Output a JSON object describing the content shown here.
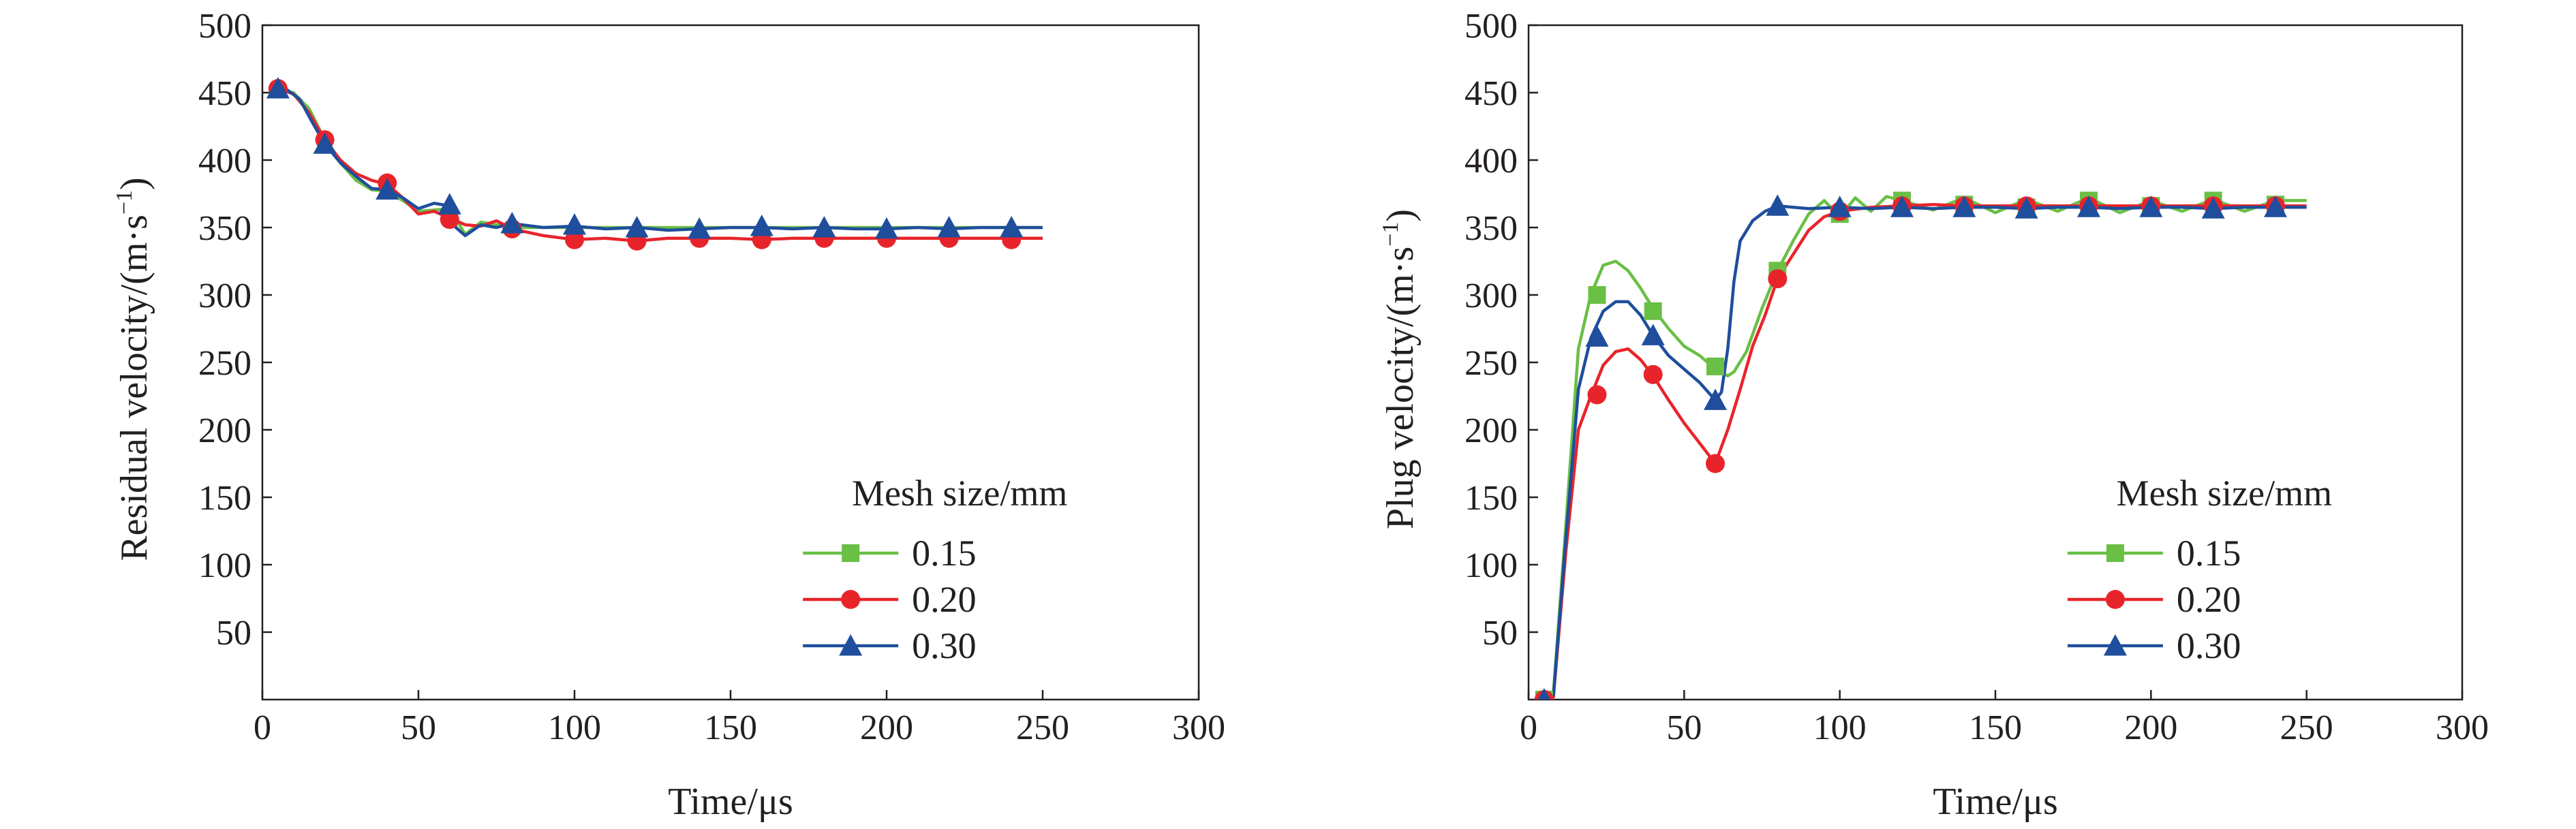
{
  "chart_data": [
    {
      "type": "line",
      "title": "",
      "xlabel": "Time/μs",
      "ylabel": "Residual velocity/(m·s",
      "ylabel_sup": "−1",
      "ylabel_close": ")",
      "xlim": [
        0,
        300
      ],
      "ylim": [
        0,
        500
      ],
      "xticks": [
        "0",
        "50",
        "100",
        "150",
        "200",
        "250",
        "300"
      ],
      "yticks": [
        "50",
        "100",
        "150",
        "200",
        "250",
        "300",
        "350",
        "400",
        "450",
        "500"
      ],
      "grid": false,
      "legend": {
        "title": "Mesh size/mm",
        "position": "bottom-right",
        "entries": [
          "0.15",
          "0.20",
          "0.30"
        ]
      },
      "series": [
        {
          "name": "0.15",
          "color": "#6abf45",
          "marker": "square",
          "x": [
            5,
            10,
            15,
            20,
            25,
            30,
            35,
            40,
            45,
            50,
            55,
            60,
            65,
            70,
            75,
            80,
            90,
            100,
            110,
            120,
            130,
            140,
            150,
            160,
            170,
            180,
            190,
            200,
            210,
            220,
            230,
            240,
            250
          ],
          "y": [
            452,
            450,
            438,
            415,
            398,
            385,
            378,
            377,
            370,
            362,
            363,
            364,
            345,
            354,
            352,
            350,
            350,
            350,
            350,
            350,
            350,
            350,
            350,
            350,
            350,
            350,
            350,
            350,
            350,
            350,
            350,
            350,
            350
          ],
          "marker_x": [],
          "marker_y": []
        },
        {
          "name": "0.20",
          "color": "#e8242b",
          "marker": "circle",
          "x": [
            5,
            10,
            15,
            20,
            25,
            30,
            35,
            40,
            45,
            50,
            55,
            60,
            65,
            70,
            75,
            80,
            90,
            100,
            110,
            120,
            130,
            140,
            150,
            160,
            170,
            180,
            190,
            200,
            210,
            220,
            230,
            240,
            250
          ],
          "y": [
            453,
            449,
            435,
            415,
            400,
            390,
            385,
            382,
            372,
            360,
            362,
            357,
            352,
            351,
            355,
            349,
            344,
            341,
            342,
            340,
            342,
            342,
            342,
            341,
            342,
            342,
            342,
            342,
            342,
            342,
            342,
            342,
            342
          ],
          "marker_x": [
            5,
            20,
            40,
            60,
            80,
            100,
            120,
            140,
            160,
            180,
            200,
            220,
            240
          ],
          "marker_y": [
            453,
            415,
            383,
            356,
            349,
            341,
            340,
            342,
            341,
            342,
            342,
            342,
            341
          ]
        },
        {
          "name": "0.30",
          "color": "#1f4e9c",
          "marker": "triangle",
          "x": [
            5,
            8,
            12,
            16,
            20,
            25,
            30,
            35,
            40,
            45,
            50,
            55,
            60,
            62,
            65,
            70,
            75,
            80,
            90,
            100,
            110,
            120,
            130,
            140,
            150,
            160,
            170,
            180,
            190,
            200,
            210,
            220,
            230,
            240,
            250
          ],
          "y": [
            453,
            452,
            445,
            428,
            412,
            398,
            388,
            379,
            378,
            372,
            364,
            368,
            366,
            350,
            344,
            352,
            350,
            353,
            350,
            351,
            349,
            350,
            348,
            349,
            350,
            350,
            349,
            350,
            349,
            349,
            350,
            349,
            350,
            350,
            350
          ],
          "marker_x": [
            5,
            20,
            40,
            60,
            80,
            100,
            120,
            140,
            160,
            180,
            200,
            220,
            240
          ],
          "marker_y": [
            453,
            412,
            378,
            367,
            353,
            352,
            350,
            349,
            351,
            350,
            349,
            350,
            350
          ]
        }
      ]
    },
    {
      "type": "line",
      "title": "",
      "xlabel": "Time/μs",
      "ylabel": "Plug velocity/(m·s",
      "ylabel_sup": "−1",
      "ylabel_close": ")",
      "xlim": [
        0,
        300
      ],
      "ylim": [
        0,
        500
      ],
      "xticks": [
        "0",
        "50",
        "100",
        "150",
        "200",
        "250",
        "300"
      ],
      "yticks": [
        "50",
        "100",
        "150",
        "200",
        "250",
        "300",
        "350",
        "400",
        "450",
        "500"
      ],
      "grid": false,
      "legend": {
        "title": "Mesh size/mm",
        "position": "bottom-right",
        "entries": [
          "0.15",
          "0.20",
          "0.30"
        ]
      },
      "series": [
        {
          "name": "0.15",
          "color": "#6abf45",
          "marker": "square",
          "x": [
            5,
            8,
            12,
            16,
            20,
            24,
            28,
            32,
            36,
            40,
            45,
            50,
            55,
            60,
            64,
            66,
            70,
            75,
            80,
            85,
            90,
            95,
            100,
            105,
            110,
            115,
            120,
            130,
            140,
            150,
            160,
            170,
            180,
            190,
            200,
            210,
            220,
            230,
            240,
            250
          ],
          "y": [
            0,
            5,
            130,
            260,
            300,
            322,
            325,
            318,
            305,
            290,
            275,
            262,
            255,
            245,
            240,
            243,
            258,
            290,
            318,
            340,
            360,
            370,
            358,
            372,
            362,
            373,
            370,
            363,
            372,
            361,
            371,
            362,
            372,
            361,
            370,
            362,
            371,
            362,
            370,
            370
          ],
          "marker_x": [
            5,
            22,
            40,
            60,
            80,
            100,
            120,
            140,
            160,
            180,
            200,
            220,
            240
          ],
          "marker_y": [
            0,
            300,
            288,
            247,
            318,
            360,
            370,
            367,
            365,
            370,
            366,
            370,
            367
          ]
        },
        {
          "name": "0.20",
          "color": "#e8242b",
          "marker": "circle",
          "x": [
            5,
            8,
            12,
            16,
            20,
            24,
            28,
            32,
            36,
            40,
            45,
            50,
            55,
            60,
            64,
            68,
            72,
            76,
            80,
            85,
            90,
            95,
            100,
            110,
            120,
            130,
            140,
            150,
            160,
            170,
            180,
            190,
            200,
            210,
            220,
            230,
            240,
            250
          ],
          "y": [
            0,
            2,
            110,
            200,
            225,
            248,
            258,
            260,
            252,
            240,
            222,
            205,
            190,
            175,
            200,
            230,
            262,
            285,
            312,
            330,
            348,
            358,
            362,
            365,
            366,
            367,
            366,
            366,
            366,
            366,
            366,
            366,
            366,
            366,
            366,
            366,
            366,
            366
          ],
          "marker_x": [
            5,
            22,
            40,
            60,
            80,
            100,
            120,
            140,
            160,
            180,
            200,
            220,
            240
          ],
          "marker_y": [
            0,
            226,
            241,
            175,
            312,
            362,
            366,
            366,
            366,
            366,
            366,
            366,
            366
          ]
        },
        {
          "name": "0.30",
          "color": "#1f4e9c",
          "marker": "triangle",
          "x": [
            5,
            8,
            12,
            16,
            20,
            24,
            28,
            32,
            36,
            40,
            45,
            50,
            55,
            60,
            62,
            64,
            66,
            68,
            72,
            76,
            80,
            90,
            100,
            110,
            120,
            130,
            140,
            150,
            160,
            170,
            180,
            190,
            200,
            210,
            220,
            230,
            240,
            250
          ],
          "y": [
            0,
            3,
            120,
            230,
            268,
            288,
            295,
            295,
            285,
            270,
            255,
            245,
            235,
            222,
            228,
            260,
            310,
            340,
            355,
            362,
            366,
            364,
            365,
            364,
            365,
            364,
            365,
            365,
            364,
            365,
            365,
            364,
            365,
            365,
            364,
            365,
            365,
            365
          ],
          "marker_x": [
            5,
            22,
            40,
            60,
            80,
            100,
            120,
            140,
            160,
            180,
            200,
            220,
            240
          ],
          "marker_y": [
            0,
            269,
            270,
            222,
            366,
            365,
            365,
            365,
            364,
            365,
            365,
            364,
            365
          ]
        }
      ]
    }
  ]
}
